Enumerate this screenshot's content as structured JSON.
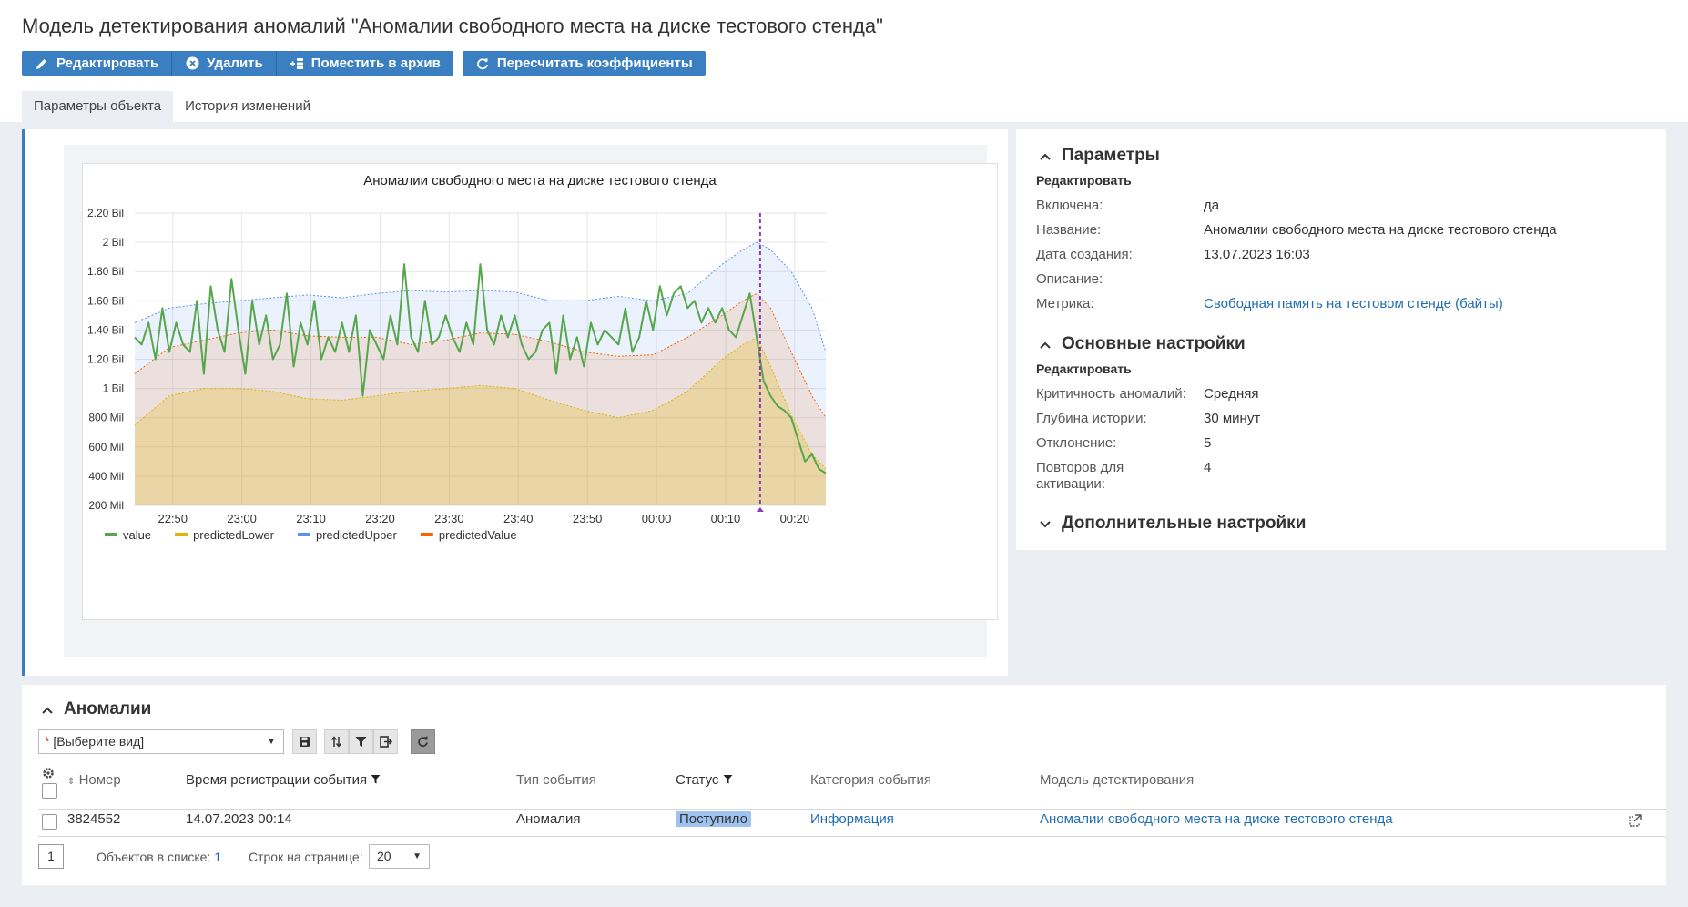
{
  "page": {
    "title": "Модель детектирования аномалий \"Аномалии свободного места на диске тестового стенда\""
  },
  "toolbar": {
    "edit_label": "Редактировать",
    "delete_label": "Удалить",
    "archive_label": "Поместить в архив",
    "recalc_label": "Пересчитать коэффициенты"
  },
  "tabs": [
    {
      "label": "Параметры объекта",
      "active": true
    },
    {
      "label": "История изменений",
      "active": false
    }
  ],
  "params": {
    "heading": "Параметры",
    "edit_label": "Редактировать",
    "rows": [
      {
        "label": "Включена:",
        "value": "да"
      },
      {
        "label": "Название:",
        "value": "Аномалии свободного места на диске тестового стенда"
      },
      {
        "label": "Дата создания:",
        "value": "13.07.2023 16:03"
      },
      {
        "label": "Описание:",
        "value": ""
      },
      {
        "label": "Метрика:",
        "value": "Свободная память на тестовом стенде (байты)"
      }
    ]
  },
  "main_settings": {
    "heading": "Основные настройки",
    "edit_label": "Редактировать",
    "rows": [
      {
        "label": "Критичность аномалий:",
        "value": "Средняя"
      },
      {
        "label": "Глубина истории:",
        "value": "30 минут"
      },
      {
        "label": "Отклонение:",
        "value": "5"
      },
      {
        "label": "Повторов для активации:",
        "value": "4"
      }
    ]
  },
  "extra_settings": {
    "heading": "Дополнительные настройки"
  },
  "anomalies": {
    "heading": "Аномалии",
    "view_placeholder": "[Выберите вид]",
    "columns": {
      "number": "Номер",
      "time": "Время регистрации события",
      "type": "Тип события",
      "status": "Статус",
      "category": "Категория события",
      "model": "Модель детектирования"
    },
    "rows": [
      {
        "number": "3824552",
        "time": "14.07.2023 00:14",
        "type": "Аномалия",
        "status": "Поступило",
        "category": "Информация",
        "model": "Аномалии свободного места на диске тестового стенда"
      }
    ],
    "pager": {
      "page": "1",
      "count_label": "Объектов в списке:",
      "count": "1",
      "rows_label": "Строк на странице:",
      "rows_per_page": "20"
    }
  },
  "colors": {
    "value": "#56a64b",
    "predictedLower": "#e0b400",
    "predictedUpper": "#5794f2",
    "predictedValue": "#fa6400",
    "marker": "#8f3bb8",
    "accent": "#3a7fc1"
  },
  "chart_data": {
    "type": "area",
    "title": "Аномалии свободного места на диске тестового стенда",
    "ylim": [
      0.2,
      2.2
    ],
    "y_ticks": [
      "200 Mil",
      "400 Mil",
      "600 Mil",
      "800 Mil",
      "1 Bil",
      "1.20 Bil",
      "1.40 Bil",
      "1.60 Bil",
      "1.80 Bil",
      "2 Bil",
      "2.20 Bil"
    ],
    "y_tick_values": [
      0.2,
      0.4,
      0.6,
      0.8,
      1.0,
      1.2,
      1.4,
      1.6,
      1.8,
      2.0,
      2.2
    ],
    "x_ticks": [
      "22:50",
      "23:00",
      "23:10",
      "23:20",
      "23:30",
      "23:40",
      "23:50",
      "00:00",
      "00:10",
      "00:20"
    ],
    "x_tick_values": [
      5.5,
      15.5,
      25.5,
      35.5,
      45.5,
      55.5,
      65.5,
      75.5,
      85.5,
      95.5
    ],
    "xlim": [
      0,
      100
    ],
    "marker_x": 90.5,
    "grid": true,
    "legend_position": "bottom-left",
    "series": [
      {
        "name": "predictedUpper",
        "x": [
          0,
          5,
          10,
          15,
          20,
          25,
          30,
          35,
          40,
          45,
          50,
          55,
          60,
          65,
          70,
          75,
          80,
          85,
          88,
          90,
          92,
          95,
          98,
          100
        ],
        "values": [
          1.45,
          1.55,
          1.58,
          1.6,
          1.62,
          1.64,
          1.62,
          1.65,
          1.67,
          1.66,
          1.67,
          1.66,
          1.6,
          1.6,
          1.63,
          1.6,
          1.65,
          1.85,
          1.95,
          2.0,
          1.95,
          1.8,
          1.55,
          1.25
        ]
      },
      {
        "name": "predictedValue",
        "x": [
          0,
          5,
          10,
          15,
          20,
          25,
          30,
          35,
          40,
          45,
          50,
          55,
          60,
          65,
          70,
          75,
          80,
          85,
          88,
          90,
          92,
          95,
          98,
          100
        ],
        "values": [
          1.1,
          1.28,
          1.33,
          1.38,
          1.4,
          1.36,
          1.35,
          1.35,
          1.3,
          1.33,
          1.38,
          1.37,
          1.32,
          1.25,
          1.22,
          1.23,
          1.35,
          1.5,
          1.6,
          1.65,
          1.55,
          1.25,
          0.95,
          0.8
        ]
      },
      {
        "name": "predictedLower",
        "x": [
          0,
          5,
          10,
          15,
          20,
          25,
          30,
          35,
          40,
          45,
          50,
          55,
          60,
          65,
          70,
          75,
          80,
          85,
          88,
          90,
          92,
          95,
          98,
          100
        ],
        "values": [
          0.75,
          0.95,
          1.0,
          1.0,
          0.98,
          0.93,
          0.92,
          0.95,
          0.98,
          1.0,
          1.02,
          1.0,
          0.92,
          0.85,
          0.8,
          0.85,
          0.98,
          1.2,
          1.3,
          1.35,
          1.15,
          0.82,
          0.55,
          0.45
        ]
      },
      {
        "name": "value",
        "x": [
          0,
          1,
          2,
          3,
          4,
          5,
          6,
          7,
          8,
          9,
          10,
          11,
          12,
          13,
          14,
          15,
          16,
          17,
          18,
          19,
          20,
          21,
          22,
          23,
          24,
          25,
          26,
          27,
          28,
          29,
          30,
          31,
          32,
          33,
          34,
          35,
          36,
          37,
          38,
          39,
          40,
          41,
          42,
          43,
          44,
          45,
          46,
          47,
          48,
          49,
          50,
          51,
          52,
          53,
          54,
          55,
          56,
          57,
          58,
          59,
          60,
          61,
          62,
          63,
          64,
          65,
          66,
          67,
          68,
          69,
          70,
          71,
          72,
          73,
          74,
          75,
          76,
          77,
          78,
          79,
          80,
          81,
          82,
          83,
          84,
          85,
          86,
          87,
          88,
          89,
          90,
          91,
          92,
          93,
          94,
          95,
          96,
          97,
          98,
          99,
          100
        ],
        "values": [
          1.35,
          1.3,
          1.45,
          1.2,
          1.55,
          1.25,
          1.45,
          1.3,
          1.25,
          1.6,
          1.1,
          1.7,
          1.4,
          1.25,
          1.75,
          1.4,
          1.1,
          1.6,
          1.3,
          1.5,
          1.2,
          1.3,
          1.65,
          1.15,
          1.45,
          1.3,
          1.6,
          1.2,
          1.35,
          1.25,
          1.45,
          1.25,
          1.5,
          0.95,
          1.4,
          1.3,
          1.2,
          1.5,
          1.3,
          1.85,
          1.35,
          1.25,
          1.6,
          1.3,
          1.35,
          1.5,
          1.35,
          1.25,
          1.45,
          1.3,
          1.85,
          1.4,
          1.3,
          1.5,
          1.35,
          1.5,
          1.3,
          1.2,
          1.25,
          1.4,
          1.45,
          1.1,
          1.5,
          1.2,
          1.35,
          1.15,
          1.45,
          1.3,
          1.4,
          1.35,
          1.3,
          1.55,
          1.25,
          1.35,
          1.6,
          1.4,
          1.7,
          1.5,
          1.65,
          1.7,
          1.55,
          1.6,
          1.45,
          1.55,
          1.45,
          1.55,
          1.4,
          1.35,
          1.5,
          1.65,
          1.35,
          1.05,
          0.95,
          0.88,
          0.85,
          0.8,
          0.65,
          0.5,
          0.55,
          0.45,
          0.42
        ]
      }
    ]
  }
}
